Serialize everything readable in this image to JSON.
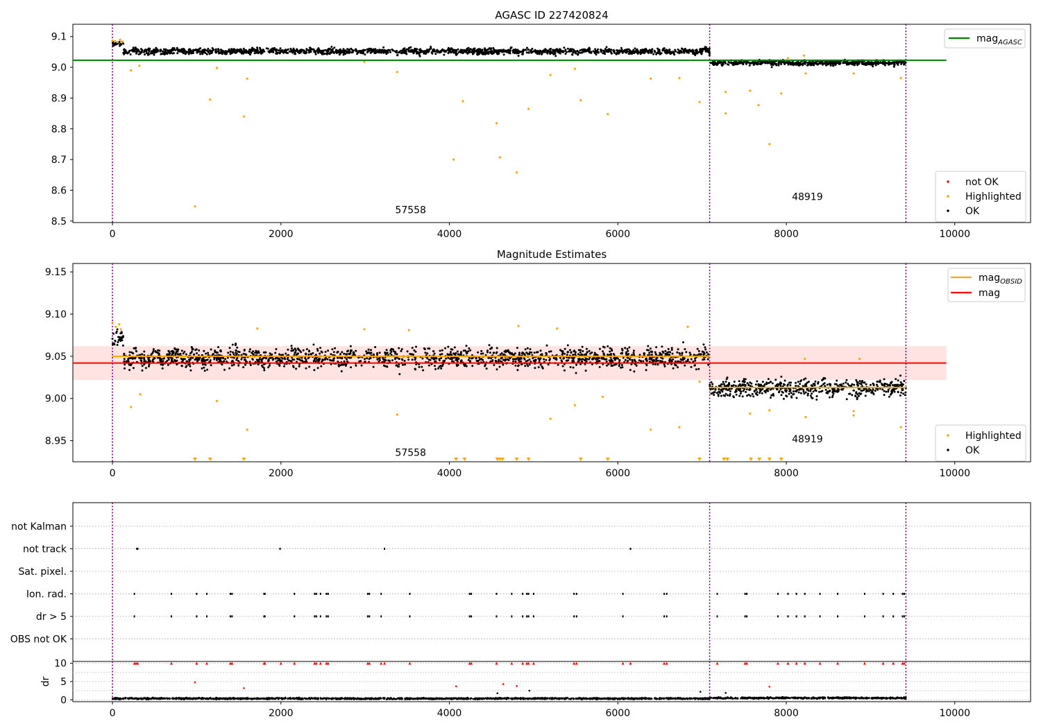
{
  "chart_data": [
    {
      "id": "agasc",
      "type": "scatter",
      "title": "AGASC ID 227420824",
      "xlim": [
        -470,
        10900
      ],
      "ylim": [
        8.495,
        9.14
      ],
      "xticks": [
        0,
        2000,
        4000,
        6000,
        8000,
        10000
      ],
      "yticks": [
        8.5,
        8.6,
        8.7,
        8.8,
        8.9,
        9.0,
        9.1
      ],
      "ytick_labels": [
        "8.5",
        "8.6",
        "8.7",
        "8.8",
        "8.9",
        "9.0",
        "9.1"
      ],
      "obsid_boundaries": [
        0,
        7090,
        9420
      ],
      "obsid_labels": [
        {
          "text": "57558",
          "x": 3540,
          "y": 8.526
        },
        {
          "text": "48919",
          "x": 8250,
          "y": 8.568
        }
      ],
      "lines": [
        {
          "name": "mag_AGASC",
          "color": "#008000",
          "x": [
            -470,
            9900
          ],
          "y": [
            9.023,
            9.023
          ]
        }
      ],
      "ok_bands": [
        {
          "x_start": 0,
          "x_end": 130,
          "center": 9.075,
          "spread": 0.013
        },
        {
          "x_start": 130,
          "x_end": 7090,
          "center": 9.052,
          "spread": 0.016
        },
        {
          "x_start": 7090,
          "x_end": 9420,
          "center": 9.014,
          "spread": 0.014
        }
      ],
      "highlighted_points": [
        [
          0,
          9.087
        ],
        [
          30,
          9.085
        ],
        [
          60,
          9.082
        ],
        [
          90,
          9.09
        ],
        [
          120,
          9.083
        ],
        [
          220,
          8.99
        ],
        [
          320,
          9.005
        ],
        [
          980,
          8.548
        ],
        [
          1160,
          8.895
        ],
        [
          1240,
          8.998
        ],
        [
          1560,
          8.84
        ],
        [
          1600,
          8.963
        ],
        [
          2990,
          9.018
        ],
        [
          3380,
          8.985
        ],
        [
          4050,
          8.7
        ],
        [
          4160,
          8.89
        ],
        [
          4560,
          8.818
        ],
        [
          4600,
          8.707
        ],
        [
          4800,
          8.658
        ],
        [
          4940,
          8.865
        ],
        [
          5200,
          8.975
        ],
        [
          5490,
          8.995
        ],
        [
          5560,
          8.893
        ],
        [
          5880,
          8.848
        ],
        [
          6390,
          8.963
        ],
        [
          6730,
          8.965
        ],
        [
          6970,
          8.887
        ],
        [
          7280,
          8.92
        ],
        [
          7280,
          8.85
        ],
        [
          7570,
          8.924
        ],
        [
          7670,
          8.877
        ],
        [
          7800,
          8.75
        ],
        [
          7940,
          8.915
        ],
        [
          8230,
          8.98
        ],
        [
          8800,
          8.98
        ],
        [
          9360,
          8.965
        ],
        [
          8020,
          9.03
        ],
        [
          8210,
          9.038
        ]
      ],
      "legend": [
        {
          "label": "not OK",
          "color": "#ff0000"
        },
        {
          "label": "Highlighted",
          "color": "#ffa500"
        },
        {
          "label": "OK",
          "color": "#000000"
        }
      ],
      "line_legend": [
        {
          "label": "mag",
          "sub": "AGASC",
          "color": "#008000"
        }
      ]
    },
    {
      "id": "estimates",
      "type": "scatter",
      "title": "Magnitude Estimates",
      "xlim": [
        -470,
        10900
      ],
      "ylim": [
        8.925,
        9.16
      ],
      "xticks": [
        0,
        2000,
        4000,
        6000,
        8000,
        10000
      ],
      "yticks": [
        8.95,
        9.0,
        9.05,
        9.1,
        9.15
      ],
      "ytick_labels": [
        "8.95",
        "9.00",
        "9.05",
        "9.10",
        "9.15"
      ],
      "obsid_boundaries": [
        0,
        7090,
        9420
      ],
      "obsid_labels": [
        {
          "text": "57558",
          "x": 3540,
          "y": 8.932
        },
        {
          "text": "48919",
          "x": 8250,
          "y": 8.948
        }
      ],
      "band": {
        "x": [
          -470,
          9900
        ],
        "y_low": 9.022,
        "y_high": 9.062,
        "color": "#ffdddd"
      },
      "lines": [
        {
          "name": "mag",
          "color": "#ff0000",
          "x": [
            -470,
            9900
          ],
          "y": [
            9.042,
            9.042
          ]
        },
        {
          "name": "mag_OBSID_1",
          "color": "#ffa500",
          "x": [
            0,
            7090
          ],
          "y": [
            9.05,
            9.05
          ]
        },
        {
          "name": "mag_OBSID_2",
          "color": "#ffa500",
          "x": [
            7090,
            9420
          ],
          "y": [
            9.013,
            9.013
          ]
        }
      ],
      "ok_bands": [
        {
          "x_start": 0,
          "x_end": 130,
          "center": 9.07,
          "spread": 0.016
        },
        {
          "x_start": 130,
          "x_end": 7090,
          "center": 9.048,
          "spread": 0.02
        },
        {
          "x_start": 7090,
          "x_end": 9420,
          "center": 9.012,
          "spread": 0.018
        }
      ],
      "highlighted_points": [
        [
          0,
          9.09
        ],
        [
          40,
          9.085
        ],
        [
          80,
          9.088
        ],
        [
          100,
          9.082
        ],
        [
          220,
          8.99
        ],
        [
          330,
          9.005
        ],
        [
          1240,
          8.997
        ],
        [
          1600,
          8.963
        ],
        [
          1720,
          9.083
        ],
        [
          2990,
          9.082
        ],
        [
          3380,
          8.981
        ],
        [
          3520,
          9.081
        ],
        [
          4820,
          9.086
        ],
        [
          5280,
          9.083
        ],
        [
          5200,
          8.976
        ],
        [
          5490,
          8.992
        ],
        [
          5820,
          9.002
        ],
        [
          6390,
          8.963
        ],
        [
          6730,
          8.966
        ],
        [
          6830,
          9.085
        ],
        [
          6970,
          9.02
        ],
        [
          7570,
          8.982
        ],
        [
          7800,
          8.986
        ],
        [
          8230,
          8.978
        ],
        [
          8800,
          8.98
        ],
        [
          8800,
          8.985
        ],
        [
          9360,
          8.966
        ],
        [
          8220,
          9.047
        ],
        [
          8870,
          9.047
        ]
      ],
      "off_scale_x": [
        980,
        1160,
        1560,
        4080,
        4180,
        4570,
        4600,
        4630,
        4800,
        4940,
        5560,
        5880,
        6970,
        7260,
        7300,
        7580,
        7680,
        7800,
        7940
      ],
      "legend": [
        {
          "label": "Highlighted",
          "color": "#ffa500"
        },
        {
          "label": "OK",
          "color": "#000000"
        }
      ],
      "line_legend": [
        {
          "label": "mag",
          "sub": "OBSID",
          "color": "#ffa500"
        },
        {
          "label": "mag",
          "sub": "",
          "color": "#ff0000"
        }
      ]
    },
    {
      "id": "flags",
      "type": "scatter",
      "xlim": [
        -470,
        10900
      ],
      "categories": [
        "not Kalman",
        "not track",
        "Sat. pixel.",
        "Ion. rad.",
        "dr > 5",
        "OBS not OK"
      ],
      "obsid_boundaries": [
        0,
        7090,
        9420
      ],
      "category_points": {
        "not Kalman": [],
        "not track": [
          290,
          300,
          1990,
          3230,
          6150
        ],
        "Sat. pixel.": [],
        "Ion. rad.": [
          260,
          700,
          1000,
          1120,
          1400,
          1420,
          1800,
          1810,
          2160,
          2400,
          2420,
          2470,
          2540,
          2560,
          3030,
          3050,
          3190,
          3530,
          4240,
          4260,
          4560,
          4740,
          4870,
          4920,
          4940,
          5000,
          5480,
          5510,
          6060,
          6550,
          6580,
          7180,
          7510,
          7530,
          7900,
          8020,
          8120,
          8220,
          8400,
          8610,
          8930,
          9150,
          9270,
          9380,
          9400
        ],
        "dr > 5": [
          260,
          700,
          1000,
          1120,
          1400,
          1420,
          1800,
          1810,
          2160,
          2400,
          2420,
          2470,
          2540,
          2560,
          3030,
          3050,
          3190,
          3530,
          4240,
          4260,
          4560,
          4740,
          4870,
          4920,
          4940,
          5000,
          5480,
          5510,
          6060,
          6550,
          6580,
          7180,
          7510,
          7530,
          7900,
          8020,
          8120,
          8220,
          8400,
          8610,
          8930,
          9150,
          9270,
          9380,
          9400
        ],
        "OBS not OK": []
      }
    },
    {
      "id": "dr",
      "type": "scatter",
      "ylabel": "dr",
      "xlim": [
        -470,
        10900
      ],
      "ylim": [
        -0.5,
        10.5
      ],
      "xticks": [
        0,
        2000,
        4000,
        6000,
        8000,
        10000
      ],
      "yticks": [
        0,
        5,
        10
      ],
      "ytick_labels": [
        "0",
        "5",
        "10"
      ],
      "obsid_boundaries": [
        0,
        7090,
        9420
      ],
      "baseline": {
        "x_start": 0,
        "x_end": 9420,
        "center": 0.35,
        "spread": 0.35
      },
      "capped_x": [
        260,
        280,
        300,
        700,
        1000,
        1120,
        1400,
        1420,
        1800,
        1810,
        2000,
        2160,
        2400,
        2420,
        2470,
        2540,
        2560,
        3030,
        3050,
        3190,
        3230,
        3530,
        4240,
        4260,
        4560,
        4740,
        4870,
        4920,
        4940,
        5000,
        5480,
        5510,
        6060,
        6150,
        6550,
        6580,
        7180,
        7510,
        7530,
        7900,
        8020,
        8120,
        8220,
        8400,
        8610,
        8930,
        9150,
        9270,
        9380,
        9400
      ],
      "red_points": [
        [
          980,
          4.8
        ],
        [
          1560,
          3.2
        ],
        [
          4080,
          3.7
        ],
        [
          4640,
          4.3
        ],
        [
          4800,
          3.8
        ],
        [
          7800,
          3.6
        ]
      ],
      "black_points": [
        [
          4570,
          1.8
        ],
        [
          4950,
          2.5
        ],
        [
          6980,
          2.2
        ],
        [
          7280,
          1.9
        ]
      ]
    }
  ]
}
